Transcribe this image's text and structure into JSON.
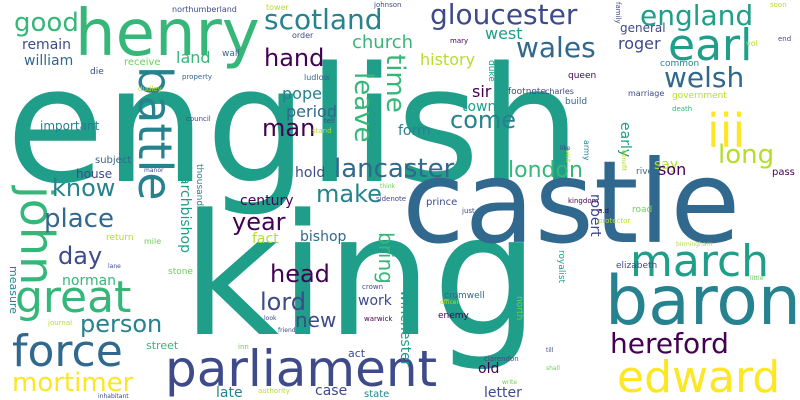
{
  "palette": {
    "dark_purple": "#440154",
    "indigo": "#3e4a89",
    "blue": "#31688e",
    "teal": "#26828e",
    "green_teal": "#1f9e89",
    "green": "#35b779",
    "light_green": "#6ece58",
    "lime": "#b5de2b",
    "yellow": "#fde725"
  },
  "words": [
    {
      "text": "english",
      "color": "#1f9e89",
      "orientation": "horizontal"
    },
    {
      "text": "king",
      "color": "#1f9e89",
      "orientation": "horizontal"
    },
    {
      "text": "castle",
      "color": "#31688e",
      "orientation": "horizontal"
    },
    {
      "text": "henry",
      "color": "#35b779",
      "orientation": "horizontal"
    },
    {
      "text": "baron",
      "color": "#26828e",
      "orientation": "horizontal"
    },
    {
      "text": "parliament",
      "color": "#3e4a89",
      "orientation": "horizontal"
    },
    {
      "text": "edward",
      "color": "#fde725",
      "orientation": "horizontal"
    },
    {
      "text": "great",
      "color": "#35b779",
      "orientation": "horizontal"
    },
    {
      "text": "battle",
      "color": "#26828e",
      "orientation": "vertical"
    },
    {
      "text": "john",
      "color": "#35b779",
      "orientation": "vertical"
    },
    {
      "text": "force",
      "color": "#31688e",
      "orientation": "horizontal"
    },
    {
      "text": "march",
      "color": "#1f9e89",
      "orientation": "horizontal"
    },
    {
      "text": "earl",
      "color": "#1f9e89",
      "orientation": "horizontal"
    },
    {
      "text": "iii",
      "color": "#fde725",
      "orientation": "horizontal"
    },
    {
      "text": "hereford",
      "color": "#440154",
      "orientation": "horizontal"
    },
    {
      "text": "mortimer",
      "color": "#fde725",
      "orientation": "horizontal"
    },
    {
      "text": "gloucester",
      "color": "#3e4a89",
      "orientation": "horizontal"
    },
    {
      "text": "scotland",
      "color": "#26828e",
      "orientation": "horizontal"
    },
    {
      "text": "wales",
      "color": "#31688e",
      "orientation": "horizontal"
    },
    {
      "text": "england",
      "color": "#1f9e89",
      "orientation": "horizontal"
    },
    {
      "text": "welsh",
      "color": "#31688e",
      "orientation": "horizontal"
    },
    {
      "text": "lancaster",
      "color": "#31688e",
      "orientation": "horizontal"
    },
    {
      "text": "long",
      "color": "#b5de2b",
      "orientation": "horizontal"
    },
    {
      "text": "good",
      "color": "#35b779",
      "orientation": "horizontal"
    },
    {
      "text": "place",
      "color": "#31688e",
      "orientation": "horizontal"
    },
    {
      "text": "time",
      "color": "#35b779",
      "orientation": "vertical"
    },
    {
      "text": "leave",
      "color": "#35b779",
      "orientation": "vertical"
    },
    {
      "text": "london",
      "color": "#35b779",
      "orientation": "horizontal"
    },
    {
      "text": "make",
      "color": "#26828e",
      "orientation": "horizontal"
    },
    {
      "text": "year",
      "color": "#440154",
      "orientation": "horizontal"
    },
    {
      "text": "lord",
      "color": "#3e4a89",
      "orientation": "horizontal"
    },
    {
      "text": "head",
      "color": "#440154",
      "orientation": "horizontal"
    },
    {
      "text": "person",
      "color": "#26828e",
      "orientation": "horizontal"
    },
    {
      "text": "man",
      "color": "#440154",
      "orientation": "horizontal"
    },
    {
      "text": "hand",
      "color": "#440154",
      "orientation": "horizontal"
    },
    {
      "text": "day",
      "color": "#3e4a89",
      "orientation": "horizontal"
    },
    {
      "text": "know",
      "color": "#26828e",
      "orientation": "horizontal"
    },
    {
      "text": "come",
      "color": "#26828e",
      "orientation": "horizontal"
    },
    {
      "text": "bring",
      "color": "#35b779",
      "orientation": "vertical"
    },
    {
      "text": "new",
      "color": "#3e4a89",
      "orientation": "horizontal"
    },
    {
      "text": "church",
      "color": "#35b779",
      "orientation": "horizontal"
    },
    {
      "text": "pope",
      "color": "#26828e",
      "orientation": "horizontal"
    },
    {
      "text": "period",
      "color": "#31688e",
      "orientation": "horizontal"
    },
    {
      "text": "west",
      "color": "#1f9e89",
      "orientation": "horizontal"
    },
    {
      "text": "roger",
      "color": "#3e4a89",
      "orientation": "horizontal"
    },
    {
      "text": "history",
      "color": "#b5de2b",
      "orientation": "horizontal"
    },
    {
      "text": "land",
      "color": "#35b779",
      "orientation": "horizontal"
    },
    {
      "text": "remain",
      "color": "#3e4a89",
      "orientation": "horizontal"
    },
    {
      "text": "william",
      "color": "#31688e",
      "orientation": "horizontal"
    },
    {
      "text": "sir",
      "color": "#440154",
      "orientation": "horizontal"
    },
    {
      "text": "town",
      "color": "#1f9e89",
      "orientation": "horizontal"
    },
    {
      "text": "form",
      "color": "#26828e",
      "orientation": "horizontal"
    },
    {
      "text": "hold",
      "color": "#3e4a89",
      "orientation": "horizontal"
    },
    {
      "text": "century",
      "color": "#440154",
      "orientation": "horizontal"
    },
    {
      "text": "bishop",
      "color": "#31688e",
      "orientation": "horizontal"
    },
    {
      "text": "fact",
      "color": "#b5de2b",
      "orientation": "horizontal"
    },
    {
      "text": "archbishop",
      "color": "#1f9e89",
      "orientation": "vertical"
    },
    {
      "text": "norman",
      "color": "#35b779",
      "orientation": "horizontal"
    },
    {
      "text": "house",
      "color": "#3e4a89",
      "orientation": "horizontal"
    },
    {
      "text": "important",
      "color": "#26828e",
      "orientation": "horizontal"
    },
    {
      "text": "say",
      "color": "#b5de2b",
      "orientation": "horizontal"
    },
    {
      "text": "son",
      "color": "#440154",
      "orientation": "horizontal"
    },
    {
      "text": "robert",
      "color": "#3e4a89",
      "orientation": "vertical"
    },
    {
      "text": "winchester",
      "color": "#1f9e89",
      "orientation": "vertical"
    },
    {
      "text": "work",
      "color": "#3e4a89",
      "orientation": "horizontal"
    },
    {
      "text": "old",
      "color": "#440154",
      "orientation": "horizontal"
    },
    {
      "text": "case",
      "color": "#3e4a89",
      "orientation": "horizontal"
    },
    {
      "text": "late",
      "color": "#26828e",
      "orientation": "horizontal"
    },
    {
      "text": "letter",
      "color": "#3e4a89",
      "orientation": "horizontal"
    },
    {
      "text": "early",
      "color": "#1f9e89",
      "orientation": "vertical"
    },
    {
      "text": "measure",
      "color": "#26828e",
      "orientation": "vertical"
    },
    {
      "text": "general",
      "color": "#3e4a89",
      "orientation": "horizontal"
    },
    {
      "text": "subject",
      "color": "#31688e",
      "orientation": "horizontal"
    },
    {
      "text": "act",
      "color": "#3e4a89",
      "orientation": "horizontal"
    },
    {
      "text": "street",
      "color": "#35b779",
      "orientation": "horizontal"
    },
    {
      "text": "state",
      "color": "#26828e",
      "orientation": "horizontal"
    },
    {
      "text": "thousand",
      "color": "#26828e",
      "orientation": "vertical"
    },
    {
      "text": "receive",
      "color": "#6ece58",
      "orientation": "horizontal"
    },
    {
      "text": "common",
      "color": "#26828e",
      "orientation": "horizontal"
    },
    {
      "text": "build",
      "color": "#31688e",
      "orientation": "horizontal"
    },
    {
      "text": "duke",
      "color": "#1f9e89",
      "orientation": "vertical"
    },
    {
      "text": "footnote",
      "color": "#3e4a89",
      "orientation": "horizontal"
    },
    {
      "text": "queen",
      "color": "#440154",
      "orientation": "horizontal"
    },
    {
      "text": "prince",
      "color": "#3e4a89",
      "orientation": "horizontal"
    },
    {
      "text": "enemy",
      "color": "#440154",
      "orientation": "horizontal"
    },
    {
      "text": "north",
      "color": "#6ece58",
      "orientation": "vertical"
    },
    {
      "text": "river",
      "color": "#31688e",
      "orientation": "horizontal"
    },
    {
      "text": "road",
      "color": "#6ece58",
      "orientation": "horizontal"
    },
    {
      "text": "return",
      "color": "#b5de2b",
      "orientation": "horizontal"
    },
    {
      "text": "stone",
      "color": "#6ece58",
      "orientation": "horizontal"
    },
    {
      "text": "pass",
      "color": "#440154",
      "orientation": "horizontal"
    },
    {
      "text": "elizabeth",
      "color": "#3e4a89",
      "orientation": "horizontal"
    },
    {
      "text": "cromwell",
      "color": "#31688e",
      "orientation": "horizontal"
    },
    {
      "text": "royalist",
      "color": "#1f9e89",
      "orientation": "vertical"
    },
    {
      "text": "army",
      "color": "#26828e",
      "orientation": "vertical"
    },
    {
      "text": "wall",
      "color": "#31688e",
      "orientation": "horizontal"
    },
    {
      "text": "die",
      "color": "#3e4a89",
      "orientation": "horizontal"
    },
    {
      "text": "ludlow",
      "color": "#31688e",
      "orientation": "horizontal"
    },
    {
      "text": "charles",
      "color": "#3e4a89",
      "orientation": "horizontal"
    },
    {
      "text": "marriage",
      "color": "#3e4a89",
      "orientation": "horizontal"
    },
    {
      "text": "government",
      "color": "#b5de2b",
      "orientation": "horizontal"
    },
    {
      "text": "northumberland",
      "color": "#3e4a89",
      "orientation": "horizontal"
    },
    {
      "text": "tower",
      "color": "#b5de2b",
      "orientation": "horizontal"
    },
    {
      "text": "johnson",
      "color": "#3e4a89",
      "orientation": "horizontal"
    },
    {
      "text": "order",
      "color": "#3e4a89",
      "orientation": "horizontal"
    },
    {
      "text": "mary",
      "color": "#440154",
      "orientation": "horizontal"
    },
    {
      "text": "soon",
      "color": "#b5de2b",
      "orientation": "horizontal"
    },
    {
      "text": "vol",
      "color": "#b5de2b",
      "orientation": "horizontal"
    },
    {
      "text": "end",
      "color": "#3e4a89",
      "orientation": "horizontal"
    },
    {
      "text": "family",
      "color": "#3e4a89",
      "orientation": "vertical"
    },
    {
      "text": "property",
      "color": "#31688e",
      "orientation": "horizontal"
    },
    {
      "text": "dudley",
      "color": "#b5de2b",
      "orientation": "horizontal"
    },
    {
      "text": "council",
      "color": "#3e4a89",
      "orientation": "horizontal"
    },
    {
      "text": "tell",
      "color": "#3e4a89",
      "orientation": "horizontal"
    },
    {
      "text": "stand",
      "color": "#b5de2b",
      "orientation": "horizontal"
    },
    {
      "text": "death",
      "color": "#35b779",
      "orientation": "horizontal"
    },
    {
      "text": "manor",
      "color": "#3e4a89",
      "orientation": "horizontal"
    },
    {
      "text": "sidenote",
      "color": "#3e4a89",
      "orientation": "horizontal"
    },
    {
      "text": "think",
      "color": "#6ece58",
      "orientation": "horizontal"
    },
    {
      "text": "kingdom",
      "color": "#440154",
      "orientation": "horizontal"
    },
    {
      "text": "just",
      "color": "#3e4a89",
      "orientation": "horizontal"
    },
    {
      "text": "a.d",
      "color": "#440154",
      "orientation": "horizontal"
    },
    {
      "text": "mile",
      "color": "#6ece58",
      "orientation": "horizontal"
    },
    {
      "text": "lane",
      "color": "#3e4a89",
      "orientation": "horizontal"
    },
    {
      "text": "crown",
      "color": "#3e4a89",
      "orientation": "horizontal"
    },
    {
      "text": "warwick",
      "color": "#440154",
      "orientation": "horizontal"
    },
    {
      "text": "friend",
      "color": "#3e4a89",
      "orientation": "horizontal"
    },
    {
      "text": "inn",
      "color": "#6ece58",
      "orientation": "horizontal"
    },
    {
      "text": "journal",
      "color": "#b5de2b",
      "orientation": "horizontal"
    },
    {
      "text": "clarendon",
      "color": "#3e4a89",
      "orientation": "horizontal"
    },
    {
      "text": "till",
      "color": "#3e4a89",
      "orientation": "horizontal"
    },
    {
      "text": "shall",
      "color": "#6ece58",
      "orientation": "horizontal"
    },
    {
      "text": "write",
      "color": "#6ece58",
      "orientation": "horizontal"
    },
    {
      "text": "authority",
      "color": "#b5de2b",
      "orientation": "horizontal"
    },
    {
      "text": "inhabitant",
      "color": "#3e4a89",
      "orientation": "horizontal"
    },
    {
      "text": "protector",
      "color": "#b5de2b",
      "orientation": "horizontal"
    },
    {
      "text": "little",
      "color": "#6ece58",
      "orientation": "horizontal"
    },
    {
      "text": "like",
      "color": "#3e4a89",
      "orientation": "horizontal"
    },
    {
      "text": "benefit",
      "color": "#b5de2b",
      "orientation": "vertical"
    },
    {
      "text": "visit",
      "color": "#b5de2b",
      "orientation": "vertical"
    },
    {
      "text": "look",
      "color": "#3e4a89",
      "orientation": "horizontal"
    },
    {
      "text": "officer",
      "color": "#b5de2b",
      "orientation": "horizontal"
    },
    {
      "text": "birmingham",
      "color": "#b5de2b",
      "orientation": "horizontal"
    }
  ]
}
